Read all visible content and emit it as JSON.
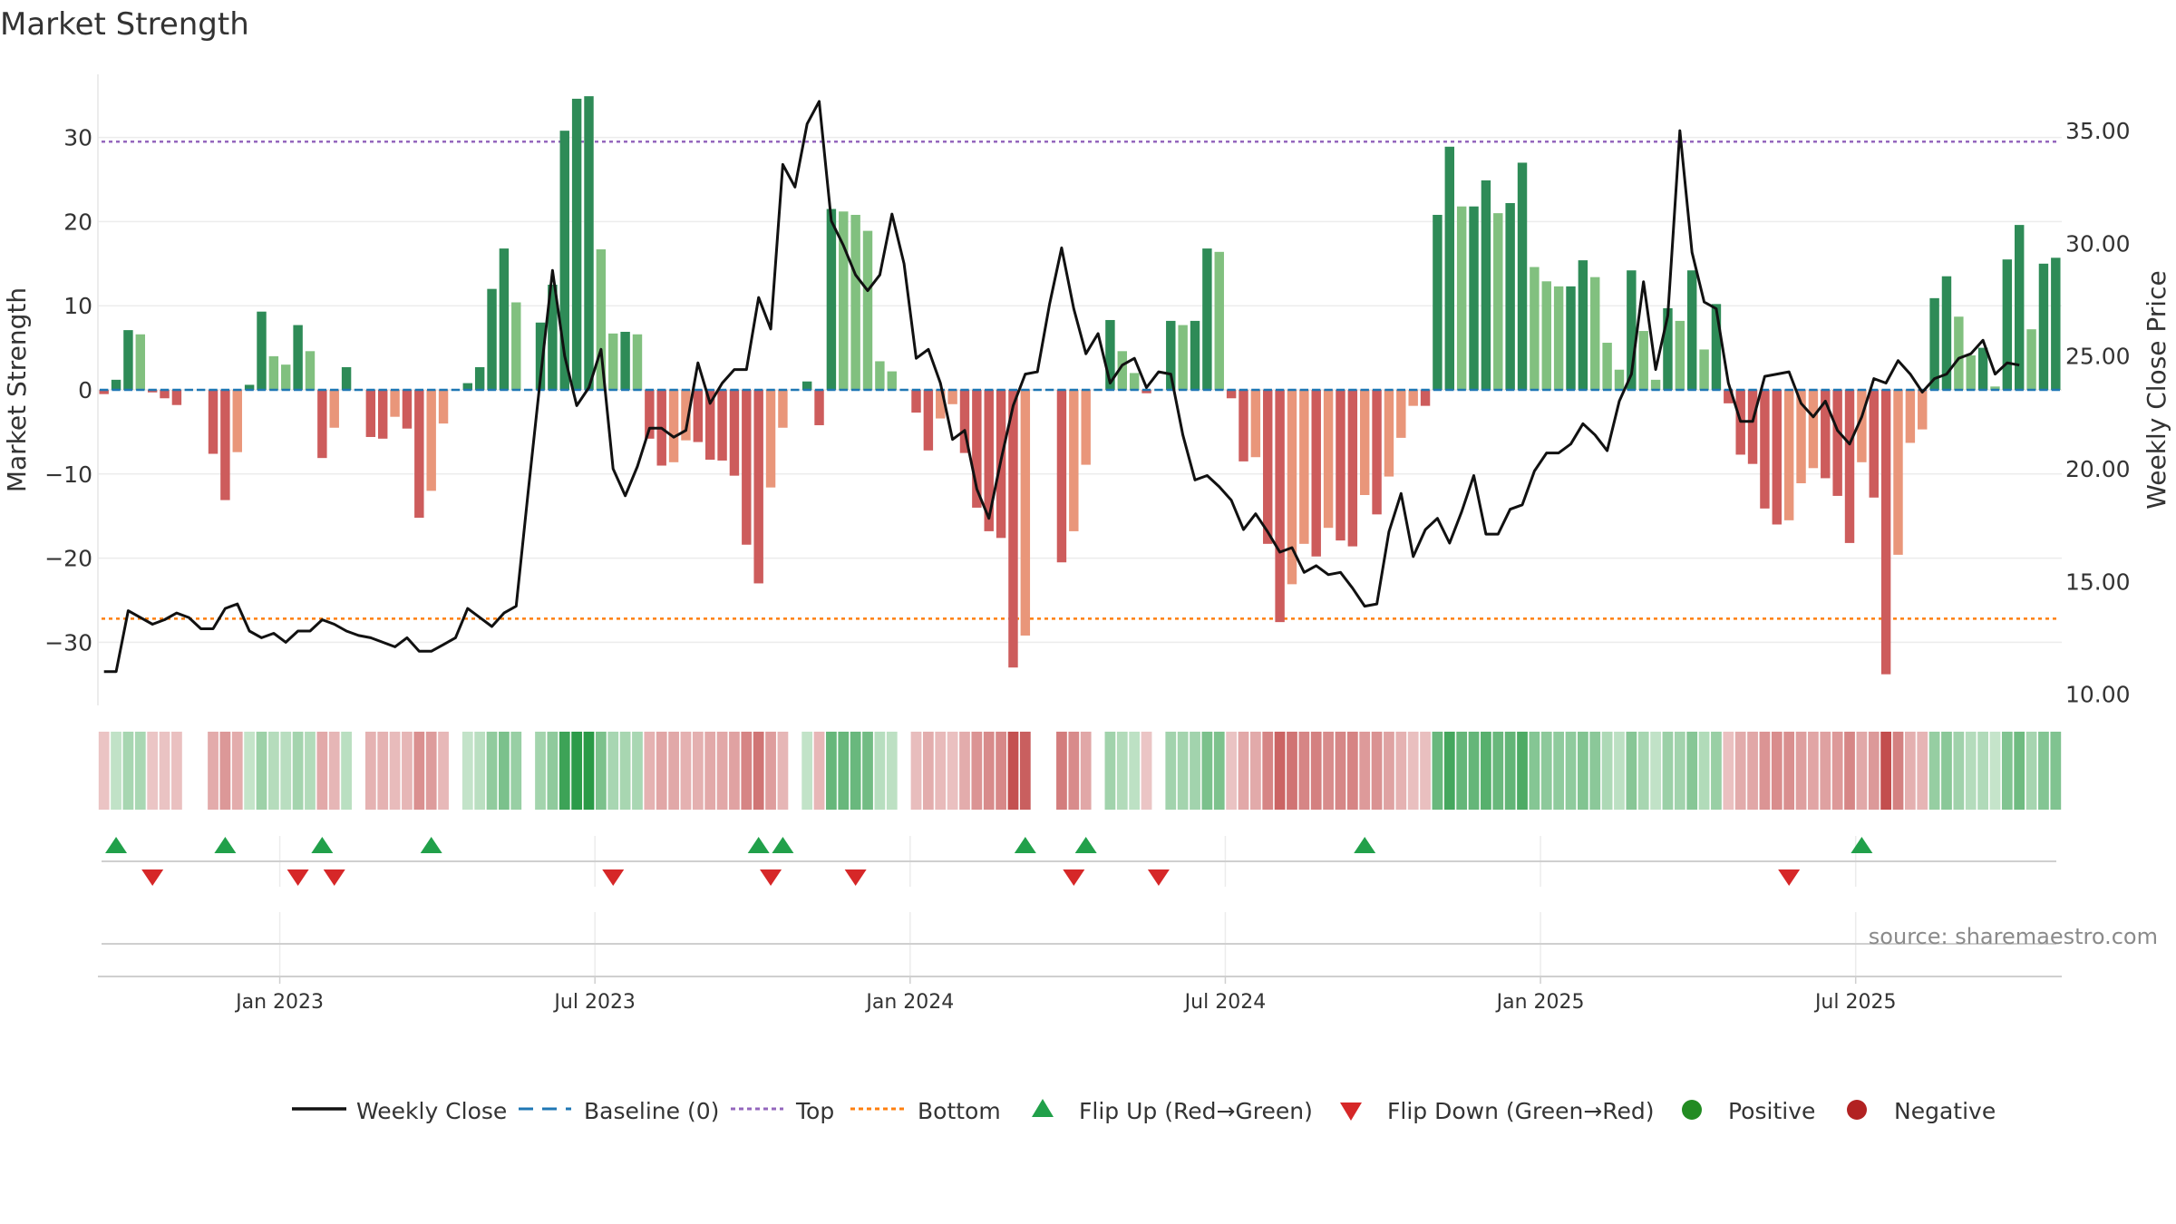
{
  "chart_data": {
    "type": "bar",
    "title": "Market Strength",
    "ylabel_left": "Market Strength",
    "ylabel_right": "Weekly Close Price",
    "ylim_left": [
      -37.5,
      37.5
    ],
    "ylim_right": [
      9.5,
      37.5
    ],
    "left_ticks": [
      30,
      20,
      10,
      0,
      -10,
      -20,
      -30
    ],
    "left_tick_labels": [
      "30",
      "20",
      "10",
      "0",
      "−10",
      "−20",
      "−30"
    ],
    "right_ticks": [
      35,
      30,
      25,
      20,
      15,
      10
    ],
    "right_tick_labels": [
      "35.00",
      "30.00",
      "25.00",
      "20.00",
      "15.00",
      "10.00"
    ],
    "top_threshold": 29.5,
    "bottom_threshold": -27.2,
    "x_ticks": [
      15,
      41,
      67,
      93,
      119,
      145
    ],
    "x_tick_labels": [
      "Jan 2023",
      "Jul 2023",
      "Jan 2024",
      "Jul 2024",
      "Jan 2025",
      "Jul 2025"
    ],
    "strength": [
      -0.5,
      1.2,
      7.1,
      6.6,
      -0.3,
      -1,
      -1.8,
      0,
      0,
      -7.6,
      -13.1,
      -7.4,
      0.6,
      9.3,
      4,
      3,
      7.7,
      4.6,
      -8.1,
      -4.5,
      2.7,
      0,
      -5.6,
      -5.8,
      -3.2,
      -4.6,
      -15.2,
      -12,
      -4,
      0,
      0.8,
      2.7,
      12,
      16.8,
      10.4,
      0,
      8,
      12.5,
      30.8,
      34.6,
      34.9,
      16.7,
      6.7,
      6.9,
      6.6,
      -5.8,
      -9,
      -8.6,
      -6,
      -6.2,
      -8.3,
      -8.4,
      -10.2,
      -18.4,
      -23,
      -11.6,
      -4.5,
      0,
      1,
      -4.2,
      21.5,
      21.2,
      20.8,
      18.9,
      3.4,
      2.2,
      0,
      -2.7,
      -7.2,
      -3.4,
      -1.7,
      -7.5,
      -14,
      -16.8,
      -17.6,
      -33,
      -29.2,
      0,
      0,
      -20.5,
      -16.8,
      -8.9,
      0,
      8.3,
      4.6,
      2,
      -0.4,
      0,
      8.2,
      7.7,
      8.2,
      16.8,
      16.4,
      -1,
      -8.5,
      -8,
      -18.3,
      -27.6,
      -23.1,
      -18.3,
      -19.8,
      -16.4,
      -17.9,
      -18.6,
      -12.5,
      -14.8,
      -10.3,
      -5.7,
      -1.9,
      -1.9,
      20.8,
      28.9,
      21.8,
      21.8,
      24.9,
      21,
      22.2,
      27,
      14.6,
      12.9,
      12.3,
      12.3,
      15.4,
      13.4,
      5.6,
      2.4,
      14.2,
      7,
      1.2,
      9.7,
      8.2,
      14.2,
      4.8,
      10.2,
      -1.6,
      -7.7,
      -8.8,
      -14.1,
      -16,
      -15.5,
      -11.1,
      -9.3,
      -10.5,
      -12.6,
      -18.2,
      -8.6,
      -12.8,
      -33.8,
      -19.6,
      -6.3,
      -4.7,
      10.9,
      13.5,
      8.7,
      4.1,
      5,
      0.4,
      15.5,
      19.6,
      7.2,
      15,
      15.7
    ],
    "price": [
      11,
      11,
      13.7,
      13.4,
      13.1,
      13.3,
      13.6,
      13.4,
      12.9,
      12.9,
      13.8,
      14,
      12.8,
      12.5,
      12.7,
      12.3,
      12.8,
      12.8,
      13.3,
      13.1,
      12.8,
      12.6,
      12.5,
      12.3,
      12.1,
      12.5,
      11.9,
      11.9,
      12.2,
      12.5,
      13.8,
      13.4,
      13,
      13.6,
      13.9,
      19,
      24,
      28.8,
      25,
      22.8,
      23.6,
      25.3,
      20,
      18.8,
      20.1,
      21.8,
      21.8,
      21.4,
      21.7,
      24.7,
      22.9,
      23.8,
      24.4,
      24.4,
      27.6,
      26.2,
      33.5,
      32.5,
      35.3,
      36.3,
      31,
      29.9,
      28.6,
      27.9,
      28.6,
      31.3,
      29.1,
      24.9,
      25.3,
      23.8,
      21.3,
      21.7,
      19.1,
      17.8,
      20.4,
      22.8,
      24.2,
      24.3,
      27.3,
      29.8,
      27.1,
      25.1,
      26,
      23.8,
      24.6,
      24.9,
      23.6,
      24.3,
      24.2,
      21.5,
      19.5,
      19.7,
      19.2,
      18.6,
      17.3,
      18,
      17.2,
      16.3,
      16.5,
      15.4,
      15.7,
      15.3,
      15.4,
      14.7,
      13.9,
      14,
      17.2,
      18.9,
      16.1,
      17.3,
      17.8,
      16.7,
      18.1,
      19.7,
      17.1,
      17.1,
      18.2,
      18.4,
      19.9,
      20.7,
      20.7,
      21.1,
      22,
      21.5,
      20.8,
      23,
      24.2,
      28.3,
      24.4,
      26.8,
      35,
      29.6,
      27.4,
      27.1,
      23.8,
      22.1,
      22.1,
      24.1,
      24.2,
      24.3,
      22.9,
      22.3,
      23,
      21.7,
      21.1,
      22.3,
      24,
      23.8,
      24.8,
      24.2,
      23.4,
      24,
      24.2,
      24.9,
      25.1,
      25.7,
      24.2,
      24.7,
      24.6
    ],
    "flip_up_weeks": [
      1,
      10,
      18,
      27,
      54,
      56,
      76,
      81,
      104,
      145
    ],
    "flip_down_weeks": [
      4,
      16,
      19,
      42,
      55,
      62,
      80,
      87,
      139
    ],
    "colors": {
      "strong_green": "#2e8b57",
      "light_green": "#81c07f",
      "strong_red": "#cd5c5c",
      "light_red": "#e9967a",
      "baseline": "#1f77b4",
      "top": "#9467bd",
      "bottom": "#ff7f0e",
      "flip_up": "#21a04a",
      "flip_down": "#d62728",
      "positive": "#228b22",
      "negative": "#b22222",
      "line": "#111111"
    },
    "legend": {
      "weekly_close": "Weekly Close",
      "baseline": "Baseline (0)",
      "top": "Top",
      "bottom": "Bottom",
      "flip_up": "Flip Up (Red→Green)",
      "flip_down": "Flip Down (Green→Red)",
      "positive": "Positive",
      "negative": "Negative"
    },
    "source": "source: sharemaestro.com"
  }
}
